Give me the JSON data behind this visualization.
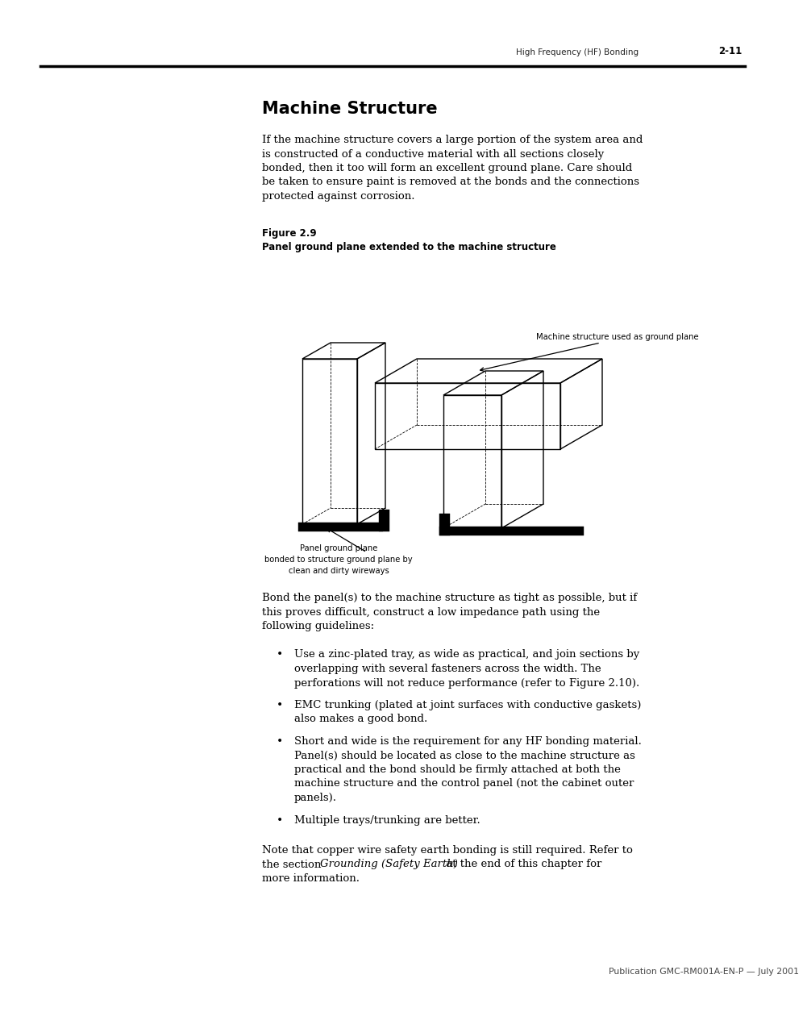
{
  "page_bg": "#ffffff",
  "header_text": "High Frequency (HF) Bonding",
  "header_page": "2-11",
  "footer_text": "Publication GMC-RM001A-EN-P — July 2001",
  "title": "Machine Structure",
  "body_para1_lines": [
    "If the machine structure covers a large portion of the system area and",
    "is constructed of a conductive material with all sections closely",
    "bonded, then it too will form an excellent ground plane. Care should",
    "be taken to ensure paint is removed at the bonds and the connections",
    "protected against corrosion."
  ],
  "fig_label": "Figure 2.9",
  "fig_caption": "Panel ground plane extended to the machine structure",
  "annotation1": "Machine structure used as ground plane",
  "annotation2_line1": "Panel ground plane",
  "annotation2_line2": "bonded to structure ground plane by",
  "annotation2_line3": "clean and dirty wireways",
  "body_para2_lines": [
    "Bond the panel(s) to the machine structure as tight as possible, but if",
    "this proves difficult, construct a low impedance path using the",
    "following guidelines:"
  ],
  "bullet1_lines": [
    "Use a zinc-plated tray, as wide as practical, and join sections by",
    "overlapping with several fasteners across the width. The",
    "perforations will not reduce performance (refer to Figure 2.10)."
  ],
  "bullet2_lines": [
    "EMC trunking (plated at joint surfaces with conductive gaskets)",
    "also makes a good bond."
  ],
  "bullet3_lines": [
    "Short and wide is the requirement for any HF bonding material.",
    "Panel(s) should be located as close to the machine structure as",
    "practical and the bond should be firmly attached at both the",
    "machine structure and the control panel (not the cabinet outer",
    "panels)."
  ],
  "bullet4_lines": [
    "Multiple trays/trunking are better."
  ],
  "para3_line1": "Note that copper wire safety earth bonding is still required. Refer to",
  "para3_line2_pre": "the section ",
  "para3_line2_italic": "Grounding (Safety Earth)",
  "para3_line2_post": " at the end of this chapter for",
  "para3_line3": "more information."
}
